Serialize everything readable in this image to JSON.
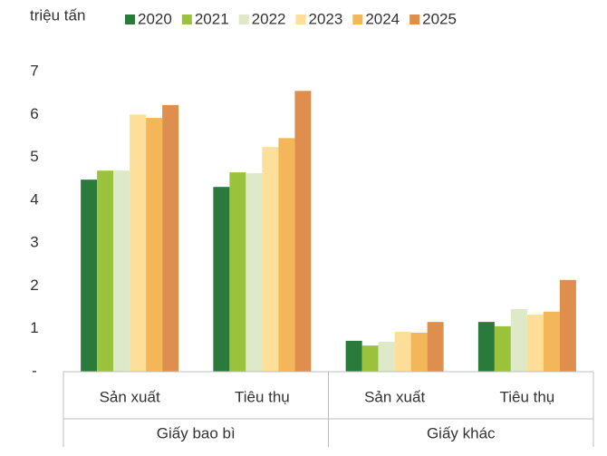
{
  "chart_data": {
    "type": "bar",
    "y_label": "triệu tấn",
    "categories": [
      "Sản xuất",
      "Tiêu thụ",
      "Sản xuất",
      "Tiêu thụ"
    ],
    "groups": [
      "Giấy bao bì",
      "Giấy khác"
    ],
    "series": [
      {
        "name": "2020",
        "color": "#2a7a3b",
        "values": [
          4.48,
          4.31,
          0.72,
          1.16
        ]
      },
      {
        "name": "2021",
        "color": "#9bc23c",
        "values": [
          4.69,
          4.65,
          0.61,
          1.06
        ]
      },
      {
        "name": "2022",
        "color": "#dde9c8",
        "values": [
          4.69,
          4.63,
          0.7,
          1.46
        ]
      },
      {
        "name": "2023",
        "color": "#fddf9a",
        "values": [
          6.0,
          5.24,
          0.93,
          1.33
        ]
      },
      {
        "name": "2024",
        "color": "#f3b659",
        "values": [
          5.92,
          5.45,
          0.91,
          1.4
        ]
      },
      {
        "name": "2025",
        "color": "#de8f4e",
        "values": [
          6.22,
          6.55,
          1.16,
          2.14
        ]
      }
    ],
    "ylim": [
      0,
      7
    ],
    "yticks": [
      {
        "value": 0,
        "label": "-"
      },
      1,
      2,
      3,
      4,
      5,
      6,
      7
    ],
    "grid": false,
    "legend": "top"
  }
}
